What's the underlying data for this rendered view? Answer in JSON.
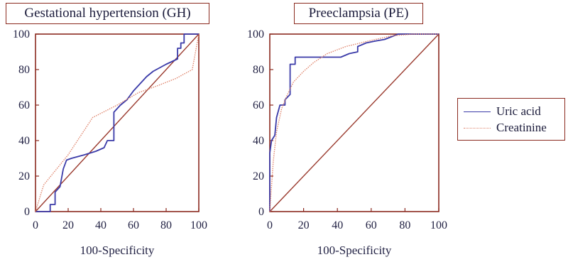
{
  "chart_data": [
    {
      "type": "line",
      "title": "Gestational hypertension (GH)",
      "xlabel": "100-Specificity",
      "ylabel": "",
      "xlim": [
        0,
        100
      ],
      "ylim": [
        0,
        100
      ],
      "xticks": [
        "0",
        "20",
        "40",
        "60",
        "80",
        "100"
      ],
      "yticks": [
        "0",
        "20",
        "40",
        "60",
        "80",
        "100"
      ],
      "reference_line": [
        [
          0,
          0
        ],
        [
          100,
          100
        ]
      ],
      "series": [
        {
          "name": "Uric acid",
          "style": "solid",
          "points": [
            [
              0,
              0
            ],
            [
              9,
              0
            ],
            [
              9,
              4
            ],
            [
              12,
              4
            ],
            [
              12,
              11
            ],
            [
              15,
              14
            ],
            [
              17,
              24
            ],
            [
              19,
              29
            ],
            [
              22,
              30
            ],
            [
              30,
              32
            ],
            [
              37,
              34
            ],
            [
              42,
              36
            ],
            [
              44,
              40
            ],
            [
              48,
              40
            ],
            [
              48,
              56
            ],
            [
              52,
              60
            ],
            [
              56,
              63
            ],
            [
              60,
              68
            ],
            [
              64,
              72
            ],
            [
              68,
              76
            ],
            [
              72,
              79
            ],
            [
              80,
              83
            ],
            [
              87,
              86
            ],
            [
              87,
              92
            ],
            [
              89,
              92
            ],
            [
              89,
              95
            ],
            [
              91,
              95
            ],
            [
              91,
              100
            ],
            [
              100,
              100
            ]
          ]
        },
        {
          "name": "Creatinine",
          "style": "dotted",
          "points": [
            [
              0,
              0
            ],
            [
              5,
              15
            ],
            [
              20,
              32
            ],
            [
              35,
              53
            ],
            [
              50,
              60
            ],
            [
              63,
              67
            ],
            [
              75,
              71
            ],
            [
              86,
              75
            ],
            [
              96,
              80
            ],
            [
              100,
              100
            ]
          ]
        }
      ]
    },
    {
      "type": "line",
      "title": "Preeclampsia (PE)",
      "xlabel": "100-Specificity",
      "ylabel": "",
      "xlim": [
        0,
        100
      ],
      "ylim": [
        0,
        100
      ],
      "xticks": [
        "0",
        "20",
        "40",
        "60",
        "80",
        "100"
      ],
      "yticks": [
        "0",
        "20",
        "40",
        "60",
        "80",
        "100"
      ],
      "reference_line": [
        [
          0,
          0
        ],
        [
          100,
          100
        ]
      ],
      "series": [
        {
          "name": "Uric acid",
          "style": "solid",
          "points": [
            [
              0,
              0
            ],
            [
              0,
              33
            ],
            [
              1,
              40
            ],
            [
              3,
              43
            ],
            [
              4,
              53
            ],
            [
              6,
              60
            ],
            [
              9,
              60
            ],
            [
              9,
              63
            ],
            [
              12,
              66
            ],
            [
              12,
              83
            ],
            [
              15,
              83
            ],
            [
              15,
              87
            ],
            [
              20,
              87
            ],
            [
              34,
              87
            ],
            [
              42,
              87
            ],
            [
              47,
              89
            ],
            [
              52,
              90
            ],
            [
              52,
              93
            ],
            [
              57,
              95
            ],
            [
              62,
              96
            ],
            [
              68,
              97
            ],
            [
              76,
              100
            ],
            [
              100,
              100
            ]
          ]
        },
        {
          "name": "Creatinine",
          "style": "dotted",
          "points": [
            [
              0,
              0
            ],
            [
              2,
              28
            ],
            [
              4,
              45
            ],
            [
              7,
              58
            ],
            [
              10,
              65
            ],
            [
              14,
              73
            ],
            [
              20,
              79
            ],
            [
              26,
              84
            ],
            [
              34,
              89
            ],
            [
              45,
              93
            ],
            [
              58,
              96
            ],
            [
              72,
              99
            ],
            [
              85,
              100
            ],
            [
              100,
              100
            ]
          ]
        }
      ]
    }
  ],
  "legend": {
    "items": [
      {
        "label": "Uric acid",
        "color": "#3a3aa8",
        "style": "solid"
      },
      {
        "label": "Creatinine",
        "color": "#e0866e",
        "style": "dotted"
      }
    ]
  },
  "colors": {
    "uric_acid": "#3a3aa8",
    "creatinine": "#e0866e",
    "reference": "#9a3a2e",
    "frame": "#8b2a1f"
  }
}
